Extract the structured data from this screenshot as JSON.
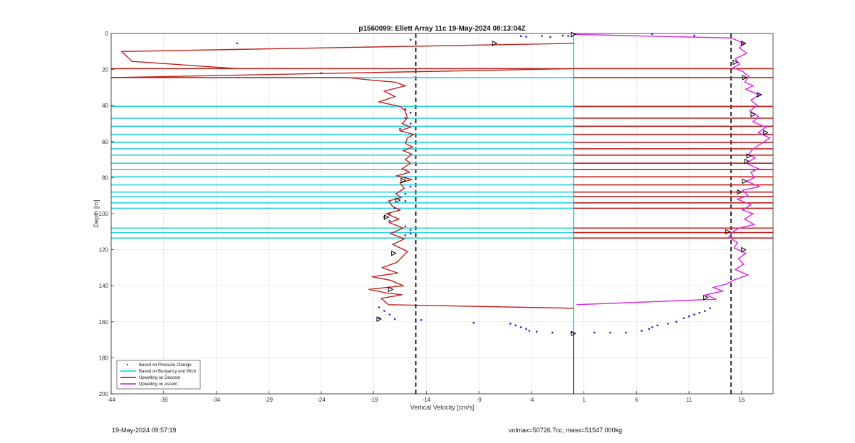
{
  "chart_data": {
    "type": "line",
    "title": "p1560099: Ellett Array 11c 19-May-2024 08:13:04Z",
    "xlabel": "Vertical Velocity [cm/s]",
    "ylabel": "Depth [m]",
    "xlim": [
      -44,
      19
    ],
    "ylim": [
      0,
      200
    ],
    "y_reversed": true,
    "x_ticks": [
      -44,
      -39,
      -34,
      -29,
      -24,
      -19,
      -14,
      -9,
      -4,
      1,
      6,
      11,
      16
    ],
    "y_ticks": [
      0,
      20,
      40,
      60,
      80,
      100,
      120,
      140,
      160,
      180,
      200
    ],
    "grid": true,
    "legend_position": "bottom-left",
    "threshold_lines_x": [
      -15,
      15
    ],
    "zero_line_x": 0,
    "series": [
      {
        "name": "Based on Pressure Change",
        "color": "#1f1fd0",
        "style": "points",
        "points": [
          [
            -32,
            5.5
          ],
          [
            -15.5,
            3.5
          ],
          [
            -5,
            1.5
          ],
          [
            -4.5,
            1.8
          ],
          [
            -3,
            1.3
          ],
          [
            -2.2,
            2
          ],
          [
            -1,
            1.2
          ],
          [
            -0.5,
            1.4
          ],
          [
            -0.2,
            1.6
          ],
          [
            7.5,
            0.3
          ],
          [
            11.5,
            1.2
          ],
          [
            -24,
            22
          ],
          [
            -16,
            42
          ],
          [
            -15.5,
            44
          ],
          [
            -16,
            47
          ],
          [
            -15.5,
            50
          ],
          [
            -16.5,
            53
          ],
          [
            -15,
            73
          ],
          [
            -16,
            80
          ],
          [
            -15.5,
            85
          ],
          [
            -16,
            89
          ],
          [
            -16,
            93
          ],
          [
            -17,
            97
          ],
          [
            -17.5,
            100
          ],
          [
            -18,
            102
          ],
          [
            -17.5,
            104
          ],
          [
            -16,
            107
          ],
          [
            -15.5,
            109
          ],
          [
            -15.5,
            111
          ],
          [
            -16,
            112
          ],
          [
            -18.5,
            152
          ],
          [
            -18,
            154
          ],
          [
            -17.5,
            156
          ],
          [
            -18.5,
            158
          ],
          [
            -17,
            158.5
          ],
          [
            -14.5,
            159
          ],
          [
            -9.5,
            160.5
          ],
          [
            -6,
            161
          ],
          [
            -5.5,
            162
          ],
          [
            -5,
            163
          ],
          [
            -4.5,
            164
          ],
          [
            -4.2,
            165
          ],
          [
            -3.5,
            165.5
          ],
          [
            -2,
            166
          ],
          [
            -0.2,
            166
          ],
          [
            2,
            166
          ],
          [
            3.5,
            166
          ],
          [
            5,
            166
          ],
          [
            6.5,
            165
          ],
          [
            7.2,
            164
          ],
          [
            7.5,
            163
          ],
          [
            8,
            162
          ],
          [
            9,
            161
          ],
          [
            9.8,
            160
          ],
          [
            10.5,
            158
          ],
          [
            11,
            157
          ],
          [
            11.5,
            156
          ],
          [
            12,
            155
          ],
          [
            12.5,
            154
          ],
          [
            13,
            152.5
          ]
        ]
      },
      {
        "name": "Based on Buoyancy and Pitch",
        "color": "#27d3e0",
        "style": "line",
        "x_depth": [
          0,
          0,
          0,
          0,
          0,
          0,
          0
        ],
        "horizontal_segments": [
          {
            "y": 19.5,
            "x_from": -44,
            "x_to": 0
          },
          {
            "y": 24.5,
            "x_from": -44,
            "x_to": 0
          },
          {
            "y": 40.5,
            "x_from": -44,
            "x_to": 0
          },
          {
            "y": 47,
            "x_from": -44,
            "x_to": 0
          },
          {
            "y": 51.5,
            "x_from": -44,
            "x_to": 0
          },
          {
            "y": 56,
            "x_from": -44,
            "x_to": 0
          },
          {
            "y": 60.5,
            "x_from": -44,
            "x_to": 0
          },
          {
            "y": 64,
            "x_from": -44,
            "x_to": 0
          },
          {
            "y": 67.5,
            "x_from": -44,
            "x_to": 0
          },
          {
            "y": 72,
            "x_from": -44,
            "x_to": 0
          },
          {
            "y": 75.5,
            "x_from": -44,
            "x_to": 0
          },
          {
            "y": 79.5,
            "x_from": -44,
            "x_to": 0
          },
          {
            "y": 84,
            "x_from": -44,
            "x_to": 0
          },
          {
            "y": 88,
            "x_from": -44,
            "x_to": 0
          },
          {
            "y": 90.5,
            "x_from": -44,
            "x_to": 0
          },
          {
            "y": 94,
            "x_from": -44,
            "x_to": 0
          },
          {
            "y": 97,
            "x_from": -44,
            "x_to": 0
          },
          {
            "y": 108,
            "x_from": -44,
            "x_to": 0
          },
          {
            "y": 110.5,
            "x_from": -44,
            "x_to": 0
          },
          {
            "y": 113.5,
            "x_from": -44,
            "x_to": 0
          }
        ]
      },
      {
        "name": "Upwelling on Descent",
        "color": "#c0201c",
        "style": "line",
        "points": [
          [
            0,
            5.5
          ],
          [
            -43,
            10
          ],
          [
            -42,
            15.5
          ],
          [
            -32,
            19.5
          ],
          [
            -44,
            19.5
          ],
          [
            0,
            19.5
          ],
          [
            -44,
            24.5
          ],
          [
            -21.5,
            24.5
          ],
          [
            -19,
            26
          ],
          [
            -17,
            27
          ],
          [
            -16,
            29
          ],
          [
            -18,
            32
          ],
          [
            -17,
            35
          ],
          [
            -18.5,
            38
          ],
          [
            -16.5,
            40.5
          ],
          [
            -16,
            43
          ],
          [
            -15.8,
            47
          ],
          [
            -16.3,
            50
          ],
          [
            -15.5,
            52
          ],
          [
            -16.5,
            54
          ],
          [
            -15.2,
            56
          ],
          [
            -15.8,
            58
          ],
          [
            -16,
            61
          ],
          [
            -15.3,
            63
          ],
          [
            -16.2,
            65
          ],
          [
            -15.4,
            67
          ],
          [
            -16,
            70
          ],
          [
            -15.5,
            72
          ],
          [
            -16.3,
            75
          ],
          [
            -15.6,
            77
          ],
          [
            -16.8,
            79
          ],
          [
            -15.4,
            81
          ],
          [
            -16.5,
            83
          ],
          [
            -16.1,
            86
          ],
          [
            -16.9,
            89
          ],
          [
            -16.4,
            91
          ],
          [
            -17.6,
            93
          ],
          [
            -17.2,
            96
          ],
          [
            -16.5,
            98
          ],
          [
            -17.8,
            100
          ],
          [
            -16.6,
            103
          ],
          [
            -17.5,
            105
          ],
          [
            -16.2,
            108
          ],
          [
            -17.4,
            111
          ],
          [
            -16.1,
            114
          ],
          [
            -17.2,
            117
          ],
          [
            -15.8,
            121
          ],
          [
            -16.3,
            124
          ],
          [
            -16.8,
            127
          ],
          [
            -18.2,
            130
          ],
          [
            -16.7,
            133
          ],
          [
            -19.2,
            135
          ],
          [
            -17.4,
            137
          ],
          [
            -16.2,
            140
          ],
          [
            -19.5,
            142
          ],
          [
            -17.8,
            144
          ],
          [
            -16.3,
            145
          ],
          [
            -18.3,
            147
          ],
          [
            -17.6,
            150.5
          ],
          [
            0,
            152.5
          ]
        ],
        "horizontal_segments": [
          {
            "y": 19.5
          },
          {
            "y": 24.5
          },
          {
            "y": 40.5
          },
          {
            "y": 47
          },
          {
            "y": 51.5
          },
          {
            "y": 56
          },
          {
            "y": 60.5
          },
          {
            "y": 64
          },
          {
            "y": 67.5
          },
          {
            "y": 72
          },
          {
            "y": 75.5
          },
          {
            "y": 79.5
          },
          {
            "y": 84
          },
          {
            "y": 88
          },
          {
            "y": 90.5
          },
          {
            "y": 94
          },
          {
            "y": 97
          },
          {
            "y": 108
          },
          {
            "y": 110.5
          },
          {
            "y": 113.5
          }
        ]
      },
      {
        "name": "Upwelling on Ascent",
        "color": "#dc2ee0",
        "style": "line",
        "points": [
          [
            0,
            0.5
          ],
          [
            15,
            2.5
          ],
          [
            16.2,
            5.5
          ],
          [
            15.8,
            8
          ],
          [
            16.5,
            11
          ],
          [
            15.4,
            14
          ],
          [
            15.8,
            17
          ],
          [
            15.2,
            19
          ],
          [
            16.1,
            21
          ],
          [
            16.7,
            24
          ],
          [
            16.3,
            27
          ],
          [
            17.1,
            29
          ],
          [
            16.4,
            31
          ],
          [
            17.7,
            34
          ],
          [
            16.9,
            37
          ],
          [
            17.5,
            40
          ],
          [
            16.8,
            43
          ],
          [
            17.6,
            46
          ],
          [
            17.1,
            49
          ],
          [
            18.3,
            52
          ],
          [
            17.6,
            55
          ],
          [
            18.7,
            58
          ],
          [
            17.9,
            61
          ],
          [
            17.1,
            64
          ],
          [
            16.7,
            67
          ],
          [
            17.3,
            69
          ],
          [
            16.4,
            72
          ],
          [
            17.6,
            75
          ],
          [
            16.9,
            77
          ],
          [
            17.2,
            80
          ],
          [
            16.5,
            82
          ],
          [
            17.7,
            85
          ],
          [
            16.1,
            87
          ],
          [
            16.6,
            90
          ],
          [
            15.6,
            92
          ],
          [
            16.9,
            95
          ],
          [
            16.1,
            98
          ],
          [
            17.1,
            100
          ],
          [
            16.3,
            103
          ],
          [
            17.2,
            106
          ],
          [
            15.8,
            108
          ],
          [
            15.2,
            110
          ],
          [
            14.8,
            113
          ],
          [
            15.6,
            116
          ],
          [
            15.3,
            119
          ],
          [
            16.4,
            122
          ],
          [
            15.7,
            125
          ],
          [
            16.2,
            128
          ],
          [
            15.4,
            131
          ],
          [
            16.6,
            134
          ],
          [
            15.2,
            137
          ],
          [
            14.6,
            139
          ],
          [
            13.3,
            141
          ],
          [
            14.2,
            143
          ],
          [
            12.6,
            145
          ],
          [
            13.6,
            147.5
          ],
          [
            0.3,
            150.5
          ]
        ]
      }
    ],
    "triangle_markers": [
      [
        -7.5,
        5.5
      ],
      [
        0,
        0.5
      ],
      [
        16.2,
        5.5
      ],
      [
        15.4,
        16
      ],
      [
        16.3,
        24.5
      ],
      [
        17.7,
        34
      ],
      [
        17.1,
        45
      ],
      [
        18.3,
        55
      ],
      [
        16.7,
        68
      ],
      [
        16.5,
        71
      ],
      [
        16.3,
        82
      ],
      [
        15.8,
        88
      ],
      [
        16.2,
        120
      ],
      [
        14.7,
        110
      ],
      [
        12.6,
        146.5
      ],
      [
        -16.2,
        81.5
      ],
      [
        -16.7,
        92.5
      ],
      [
        -17.8,
        102
      ],
      [
        -17.1,
        122
      ],
      [
        -17.4,
        142
      ],
      [
        -18.5,
        158.5
      ],
      [
        0,
        166.5
      ]
    ],
    "legend": [
      "Based on Pressure Change",
      "Based on Buoyancy and Pitch",
      "Upwelling on Descent",
      "Upwelling on Ascent"
    ]
  },
  "footer": {
    "left_text": "19-May-2024 09:57:19",
    "right_text": "volmax=50726.7cc, mass=51547.000kg"
  }
}
